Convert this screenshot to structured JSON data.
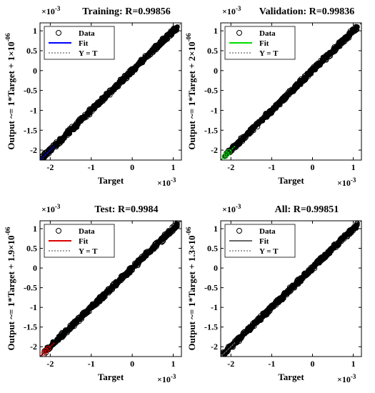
{
  "chart_data": [
    {
      "type": "scatter",
      "title": "Training: R=0.99856",
      "xlabel": "Target",
      "ylabel": "Output ~= 1*Target + 1×10",
      "ylabel_exponent": "-06",
      "x_multiplier": "×10",
      "x_multiplier_exponent": "-3",
      "y_multiplier": "×10",
      "y_multiplier_exponent": "-3",
      "xlim": [
        -2.25,
        1.2
      ],
      "ylim": [
        -2.25,
        1.2
      ],
      "xticks": [
        -2,
        -1,
        0,
        1
      ],
      "yticks": [
        -2,
        -1.5,
        -1,
        -0.5,
        0,
        0.5,
        1
      ],
      "fit_color": "#0000ff",
      "fit": {
        "slope": 1,
        "intercept": 0.001
      },
      "data_range": [
        -2.2,
        1.1
      ],
      "low_cluster": false,
      "legend": [
        "Data",
        "Fit",
        "Y = T"
      ],
      "legend_position": "top-left"
    },
    {
      "type": "scatter",
      "title": "Validation: R=0.99836",
      "xlabel": "Target",
      "ylabel": "Output ~= 1*Target + 2×10",
      "ylabel_exponent": "-06",
      "x_multiplier": "×10",
      "x_multiplier_exponent": "-3",
      "y_multiplier": "×10",
      "y_multiplier_exponent": "-3",
      "xlim": [
        -2.25,
        1.2
      ],
      "ylim": [
        -2.25,
        1.2
      ],
      "xticks": [
        -2,
        -1,
        0,
        1
      ],
      "yticks": [
        -2,
        -1.5,
        -1,
        -0.5,
        0,
        0.5,
        1
      ],
      "fit_color": "#00dd00",
      "fit": {
        "slope": 1,
        "intercept": 0.002
      },
      "data_range": [
        -2.15,
        1.1
      ],
      "low_cluster": true,
      "legend": [
        "Data",
        "Fit",
        "Y = T"
      ],
      "legend_position": "top-left"
    },
    {
      "type": "scatter",
      "title": "Test: R=0.9984",
      "xlabel": "Target",
      "ylabel": "Output ~= 1*Target + 1.9×10",
      "ylabel_exponent": "-06",
      "x_multiplier": "×10",
      "x_multiplier_exponent": "-3",
      "y_multiplier": "×10",
      "y_multiplier_exponent": "-3",
      "xlim": [
        -2.25,
        1.2
      ],
      "ylim": [
        -2.25,
        1.2
      ],
      "xticks": [
        -2,
        -1,
        0,
        1
      ],
      "yticks": [
        -2,
        -1.5,
        -1,
        -0.5,
        0,
        0.5,
        1
      ],
      "fit_color": "#dd0000",
      "fit": {
        "slope": 1,
        "intercept": 0.0019
      },
      "data_range": [
        -2.15,
        1.1
      ],
      "low_cluster": true,
      "legend": [
        "Data",
        "Fit",
        "Y = T"
      ],
      "legend_position": "top-left"
    },
    {
      "type": "scatter",
      "title": "All: R=0.99851",
      "xlabel": "Target",
      "ylabel": "Output ~= 1*Target + 1.3×10",
      "ylabel_exponent": "-06",
      "x_multiplier": "×10",
      "x_multiplier_exponent": "-3",
      "y_multiplier": "×10",
      "y_multiplier_exponent": "-3",
      "xlim": [
        -2.25,
        1.2
      ],
      "ylim": [
        -2.25,
        1.2
      ],
      "xticks": [
        -2,
        -1,
        0,
        1
      ],
      "yticks": [
        -2,
        -1.5,
        -1,
        -0.5,
        0,
        0.5,
        1
      ],
      "fit_color": "#666666",
      "fit": {
        "slope": 1,
        "intercept": 0.0013
      },
      "data_range": [
        -2.2,
        1.1
      ],
      "low_cluster": false,
      "legend": [
        "Data",
        "Fit",
        "Y = T"
      ],
      "legend_position": "top-left"
    }
  ]
}
